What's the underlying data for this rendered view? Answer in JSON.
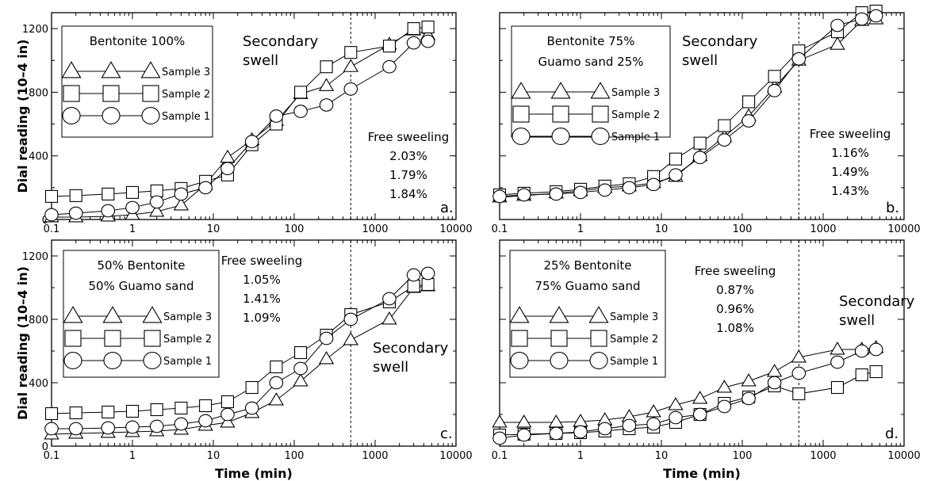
{
  "chart_data": [
    {
      "type": "line",
      "panel_label": "a.",
      "x_scale": "log",
      "xlim": [
        0.1,
        10000
      ],
      "ylim": [
        0,
        1300
      ],
      "x_ticks": [
        "0.1",
        "1",
        "10",
        "100",
        "1000",
        "10000"
      ],
      "y_ticks": [
        "0",
        "400",
        "800",
        "1200"
      ],
      "xlabel": "",
      "ylabel": "Dial reading (10–4 in)",
      "vline_x": 500,
      "legend_title": [
        "Bentonite 100%"
      ],
      "legend_entries": [
        "Sample 3",
        "Sample 2",
        "Sample 1"
      ],
      "annotations": {
        "secondary": [
          "Secondary",
          "swell"
        ],
        "free_title": "Free sweeling",
        "free_values": [
          "2.03%",
          "1.79%",
          "1.84%"
        ]
      },
      "x": [
        0.1,
        0.2,
        0.5,
        1,
        2,
        4,
        8,
        15,
        30,
        60,
        120,
        250,
        500,
        1500,
        3000,
        4500
      ],
      "series": [
        {
          "name": "Sample 3",
          "marker": "triangle",
          "values": [
            15,
            15,
            20,
            30,
            50,
            90,
            220,
            390,
            500,
            620,
            790,
            840,
            960,
            1100,
            1190,
            1160
          ]
        },
        {
          "name": "Sample 2",
          "marker": "square",
          "values": [
            145,
            150,
            160,
            170,
            180,
            195,
            240,
            280,
            470,
            600,
            800,
            960,
            1050,
            1090,
            1200,
            1210
          ]
        },
        {
          "name": "Sample 1",
          "marker": "circle",
          "values": [
            30,
            40,
            55,
            75,
            110,
            160,
            200,
            320,
            490,
            650,
            680,
            720,
            820,
            960,
            1110,
            1120
          ]
        }
      ]
    },
    {
      "type": "line",
      "panel_label": "b.",
      "x_scale": "log",
      "xlim": [
        0.1,
        10000
      ],
      "ylim": [
        0,
        1300
      ],
      "x_ticks": [
        "0.1",
        "1",
        "10",
        "100",
        "1000",
        "10000"
      ],
      "y_ticks": [],
      "xlabel": "",
      "ylabel": "",
      "vline_x": 500,
      "legend_title": [
        "Bentonite 75%",
        "Guamo sand 25%"
      ],
      "legend_entries": [
        "Sample 3",
        "Sample 2",
        "Sample 1"
      ],
      "annotations": {
        "secondary": [
          "Secondary",
          "swell"
        ],
        "free_title": "Free sweeling",
        "free_values": [
          "1.16%",
          "1.49%",
          "1.43%"
        ]
      },
      "x": [
        0.1,
        0.2,
        0.5,
        1,
        2,
        4,
        8,
        15,
        30,
        60,
        120,
        250,
        500,
        1500,
        3000,
        4500
      ],
      "series": [
        {
          "name": "Sample 3",
          "marker": "triangle",
          "values": [
            140,
            150,
            165,
            180,
            200,
            210,
            230,
            270,
            400,
            520,
            650,
            830,
            1000,
            1100,
            1250,
            1260
          ]
        },
        {
          "name": "Sample 2",
          "marker": "square",
          "values": [
            155,
            165,
            175,
            190,
            210,
            225,
            270,
            380,
            480,
            590,
            740,
            900,
            1060,
            1180,
            1300,
            1310
          ]
        },
        {
          "name": "Sample 1",
          "marker": "circle",
          "values": [
            145,
            155,
            160,
            170,
            185,
            200,
            220,
            280,
            390,
            500,
            620,
            810,
            1010,
            1220,
            1260,
            1280
          ]
        }
      ]
    },
    {
      "type": "line",
      "panel_label": "c.",
      "x_scale": "log",
      "xlim": [
        0.1,
        10000
      ],
      "ylim": [
        0,
        1300
      ],
      "x_ticks": [
        "0.1",
        "1",
        "10",
        "100",
        "1000",
        "10000"
      ],
      "y_ticks": [
        "0",
        "400",
        "800",
        "1200"
      ],
      "xlabel": "Time (min)",
      "ylabel": "Dial reading (10–4 in)",
      "vline_x": 500,
      "legend_title": [
        "50% Bentonite",
        "50% Guamo sand"
      ],
      "legend_entries": [
        "Sample 3",
        "Sample 2",
        "Sample 1"
      ],
      "annotations": {
        "secondary": [
          "Secondary",
          "swell"
        ],
        "free_title": "Free sweeling",
        "free_values": [
          "1.05%",
          "1.41%",
          "1.09%"
        ]
      },
      "x": [
        0.1,
        0.2,
        0.5,
        1,
        2,
        4,
        8,
        15,
        30,
        60,
        120,
        250,
        500,
        1500,
        3000,
        4500
      ],
      "series": [
        {
          "name": "Sample 3",
          "marker": "triangle",
          "values": [
            75,
            80,
            85,
            90,
            95,
            105,
            130,
            150,
            210,
            290,
            410,
            550,
            670,
            800,
            1000,
            1010
          ]
        },
        {
          "name": "Sample 2",
          "marker": "square",
          "values": [
            205,
            210,
            215,
            220,
            230,
            240,
            255,
            280,
            370,
            500,
            590,
            700,
            830,
            910,
            1010,
            1020
          ]
        },
        {
          "name": "Sample 1",
          "marker": "circle",
          "values": [
            110,
            110,
            115,
            120,
            125,
            140,
            160,
            200,
            240,
            400,
            490,
            680,
            800,
            930,
            1080,
            1090
          ]
        }
      ]
    },
    {
      "type": "line",
      "panel_label": "d.",
      "x_scale": "log",
      "xlim": [
        0.1,
        10000
      ],
      "ylim": [
        0,
        1300
      ],
      "x_ticks": [
        "0.1",
        "1",
        "10",
        "100",
        "1000",
        "10000"
      ],
      "y_ticks": [],
      "xlabel": "Time (min)",
      "ylabel": "",
      "vline_x": 500,
      "legend_title": [
        "25% Bentonite",
        "75% Guamo sand"
      ],
      "legend_entries": [
        "Sample 3",
        "Sample 2",
        "Sample 1"
      ],
      "annotations": {
        "secondary": [
          "Secondary",
          "swell"
        ],
        "free_title": "Free sweeling",
        "free_values": [
          "0.87%",
          "0.96%",
          "1.08%"
        ]
      },
      "x": [
        0.1,
        0.2,
        0.5,
        1,
        2,
        4,
        8,
        15,
        30,
        60,
        120,
        250,
        500,
        1500,
        3000,
        4500
      ],
      "series": [
        {
          "name": "Sample 3",
          "marker": "triangle",
          "values": [
            150,
            150,
            150,
            155,
            165,
            185,
            215,
            260,
            300,
            370,
            410,
            470,
            560,
            610,
            610,
            620
          ]
        },
        {
          "name": "Sample 2",
          "marker": "square",
          "values": [
            70,
            75,
            80,
            85,
            95,
            110,
            120,
            150,
            200,
            270,
            310,
            380,
            330,
            370,
            450,
            470
          ]
        },
        {
          "name": "Sample 1",
          "marker": "circle",
          "values": [
            50,
            70,
            80,
            90,
            110,
            130,
            140,
            180,
            200,
            250,
            300,
            400,
            460,
            530,
            600,
            610
          ]
        }
      ]
    }
  ]
}
